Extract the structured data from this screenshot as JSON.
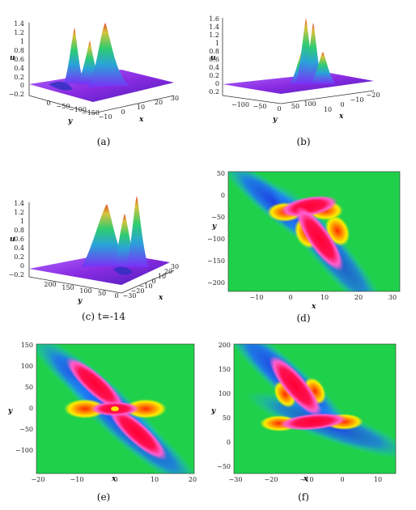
{
  "panels": [
    {
      "caption": "(a)",
      "view": "3d",
      "zlabel": "u",
      "xlabel": "x",
      "ylabel": "y",
      "zticks": [
        "1.4",
        "1.2",
        "1",
        "0.8",
        "0.6",
        "0.4",
        "0.2",
        "0",
        "−0.2"
      ],
      "yticks": [
        "0",
        "−50",
        "−100",
        "−150"
      ],
      "xticks": [
        "−10",
        "0",
        "10",
        "20",
        "30"
      ]
    },
    {
      "caption": "(b)",
      "view": "3d",
      "zlabel": "u",
      "xlabel": "x",
      "ylabel": "y",
      "zticks": [
        "1.6",
        "1.4",
        "1.2",
        "1",
        "0.8",
        "0.6",
        "0.4",
        "0.2",
        "0",
        "−0.2"
      ],
      "yticks": [
        "−100",
        "−50",
        "0",
        "50",
        "100"
      ],
      "xticks": [
        "10",
        "0",
        "−10",
        "−20"
      ]
    },
    {
      "caption": "(c)  t=-14",
      "view": "3d",
      "zlabel": "u",
      "xlabel": "x",
      "ylabel": "y",
      "zticks": [
        "1.4",
        "1.2",
        "1",
        "0.8",
        "0.6",
        "0.4",
        "0.2",
        "0",
        "−0.2"
      ],
      "yticks": [
        "200",
        "150",
        "100",
        "50",
        "0"
      ],
      "xticks": [
        "−30",
        "−20",
        "−10",
        "0",
        "10",
        "20",
        "30"
      ]
    },
    {
      "caption": "(d)",
      "view": "density",
      "xlabel": "x",
      "ylabel": "y",
      "xticks": [
        "−10",
        "0",
        "10",
        "20",
        "30"
      ],
      "yticks": [
        "50",
        "0",
        "−50",
        "−100",
        "−150",
        "−200"
      ]
    },
    {
      "caption": "(e)",
      "view": "density",
      "xlabel": "x",
      "ylabel": "y",
      "xticks": [
        "−20",
        "−10",
        "0",
        "10",
        "20"
      ],
      "yticks": [
        "150",
        "100",
        "50",
        "0",
        "−50",
        "−100"
      ]
    },
    {
      "caption": "(f)",
      "view": "density",
      "xlabel": "x",
      "ylabel": "y",
      "xticks": [
        "−30",
        "−20",
        "−10",
        "0",
        "10"
      ],
      "yticks": [
        "200",
        "150",
        "100",
        "50",
        "0",
        "−50"
      ]
    }
  ],
  "colors": {
    "background_field": "#1fd04a",
    "peak": "#ff0a3c",
    "trough": "#2a1aff",
    "halo": "#ffe600",
    "surface_base": "#8a2be2"
  }
}
